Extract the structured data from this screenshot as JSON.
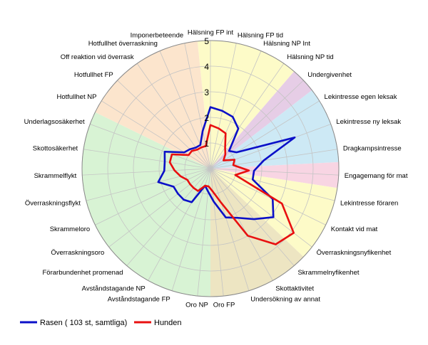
{
  "chart_data": {
    "type": "radar",
    "rmax": 5,
    "ticks": [
      "1",
      "2",
      "3",
      "4",
      "5"
    ],
    "grid": true,
    "legend_position": "bottom-left",
    "categories": [
      "Hälsning FP int",
      "Hälsning FP tid",
      "Hälsning NP Int",
      "Hälsning NP tid",
      "Undergivenhet",
      "Lekintresse egen leksak",
      "Lekintresse ny leksak",
      "Dragkampsintresse",
      "Engagemang för mat",
      "Lekintresse föraren",
      "Kontakt vid mat",
      "Överraskningsnyfikenhet",
      "Skrammelnyfikenhet",
      "Skottaktivitet",
      "Undersökning av annat",
      "Oro FP",
      "Oro NP",
      "Avståndstagande FP",
      "Avståndstagande NP",
      "Förarbundenhet promenad",
      "Överraskningsoro",
      "Skrammeloro",
      "Överraskningsflykt",
      "Skrammelflykt",
      "Skottosäkerhet",
      "Underlagsosäkerhet",
      "Hotfullhet NP",
      "Hotfullhet FP",
      "Off reaktion vid överrask",
      "Hotfullhet överraskning",
      "Imponerbeteende"
    ],
    "series": [
      {
        "name": "Rasen ( 103 st, samtliga)",
        "color": "#0b10c8",
        "values": [
          2.4,
          2.3,
          2.2,
          1.9,
          1.0,
          1.2,
          3.5,
          2.1,
          1.7,
          1.7,
          2.7,
          3.1,
          2.6,
          2.2,
          2.0,
          1.3,
          0.9,
          0.7,
          1.5,
          1.6,
          1.6,
          1.6,
          2.1,
          1.8,
          1.8,
          1.9,
          1.2,
          1.1,
          1.0,
          1.0,
          1.5
        ]
      },
      {
        "name": "Hunden",
        "color": "#e81010",
        "values": [
          1.7,
          1.6,
          1.5,
          1.0,
          0.8,
          0.6,
          1.0,
          0.9,
          1.5,
          1.0,
          3.1,
          4.1,
          3.9,
          3.0,
          1.4,
          0.9,
          0.7,
          0.7,
          1.0,
          1.0,
          1.0,
          1.0,
          1.2,
          1.4,
          1.6,
          1.6,
          1.0,
          1.0,
          0.9,
          0.9,
          0.9
        ]
      }
    ],
    "sectors": [
      {
        "from": 0,
        "to": 3,
        "color": "#fdfbc8"
      },
      {
        "from": 4,
        "to": 4,
        "color": "#e6cde6"
      },
      {
        "from": 5,
        "to": 7,
        "color": "#cde9f5"
      },
      {
        "from": 8,
        "to": 8,
        "color": "#f8d5e3"
      },
      {
        "from": 9,
        "to": 11,
        "color": "#fdfbc8"
      },
      {
        "from": 12,
        "to": 15,
        "color": "#ede5c2"
      },
      {
        "from": 16,
        "to": 25,
        "color": "#d8f3d4"
      },
      {
        "from": 26,
        "to": 30,
        "color": "#fce5cd"
      }
    ]
  }
}
